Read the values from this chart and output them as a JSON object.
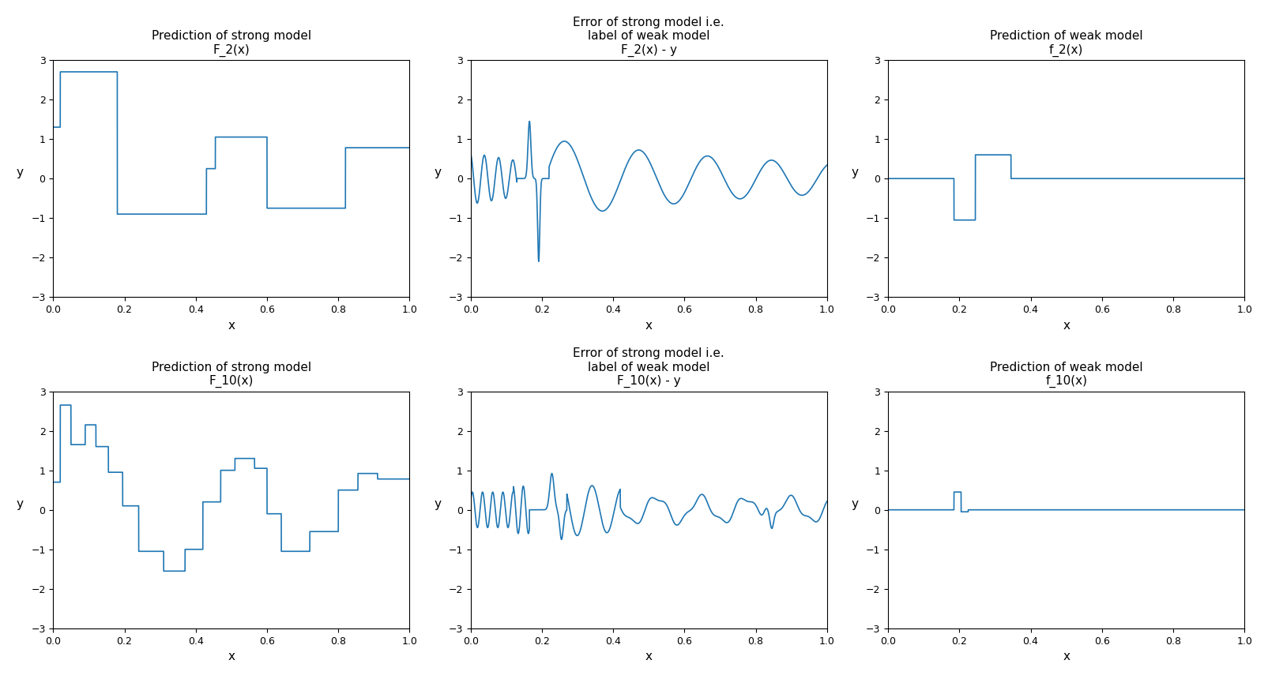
{
  "line_color": "#1f77b4",
  "background_color": "#ffffff",
  "xlim": [
    0.0,
    1.0
  ],
  "ylim": [
    -3,
    3
  ],
  "xlabel": "x",
  "ylabel": "y",
  "titles": [
    [
      "Prediction of strong model\nF_2(x)",
      "Error of strong model i.e.\nlabel of weak model\nF_2(x) - y",
      "Prediction of weak model\nf_2(x)"
    ],
    [
      "Prediction of strong model\nF_10(x)",
      "Error of strong model i.e.\nlabel of weak model\nF_10(x) - y",
      "Prediction of weak model\nf_10(x)"
    ]
  ],
  "figsize": [
    16.06,
    8.6
  ],
  "dpi": 100,
  "F2_bp": [
    0.0,
    0.02,
    0.18,
    0.43,
    0.455,
    0.6,
    0.82,
    1.01
  ],
  "F2_val": [
    1.3,
    2.7,
    -0.9,
    0.25,
    1.05,
    -0.75,
    0.78,
    0.78
  ],
  "f2_bp": [
    0.0,
    0.185,
    0.245,
    0.345,
    1.01
  ],
  "f2_val": [
    0.0,
    -1.05,
    0.6,
    0.0,
    0.0
  ],
  "F10_bp": [
    0.0,
    0.02,
    0.05,
    0.09,
    0.12,
    0.155,
    0.195,
    0.24,
    0.31,
    0.37,
    0.42,
    0.47,
    0.51,
    0.565,
    0.6,
    0.64,
    0.72,
    0.8,
    0.855,
    0.91,
    1.01
  ],
  "F10_val": [
    0.7,
    2.65,
    1.65,
    2.15,
    1.6,
    0.95,
    0.1,
    -1.05,
    -1.55,
    -1.0,
    0.2,
    1.0,
    1.3,
    1.05,
    -0.1,
    -1.05,
    -0.55,
    0.5,
    0.92,
    0.78,
    0.78
  ],
  "f10_bp": [
    0.0,
    0.185,
    0.205,
    0.225,
    1.01
  ],
  "f10_val": [
    0.0,
    0.45,
    -0.05,
    0.0,
    0.0
  ]
}
